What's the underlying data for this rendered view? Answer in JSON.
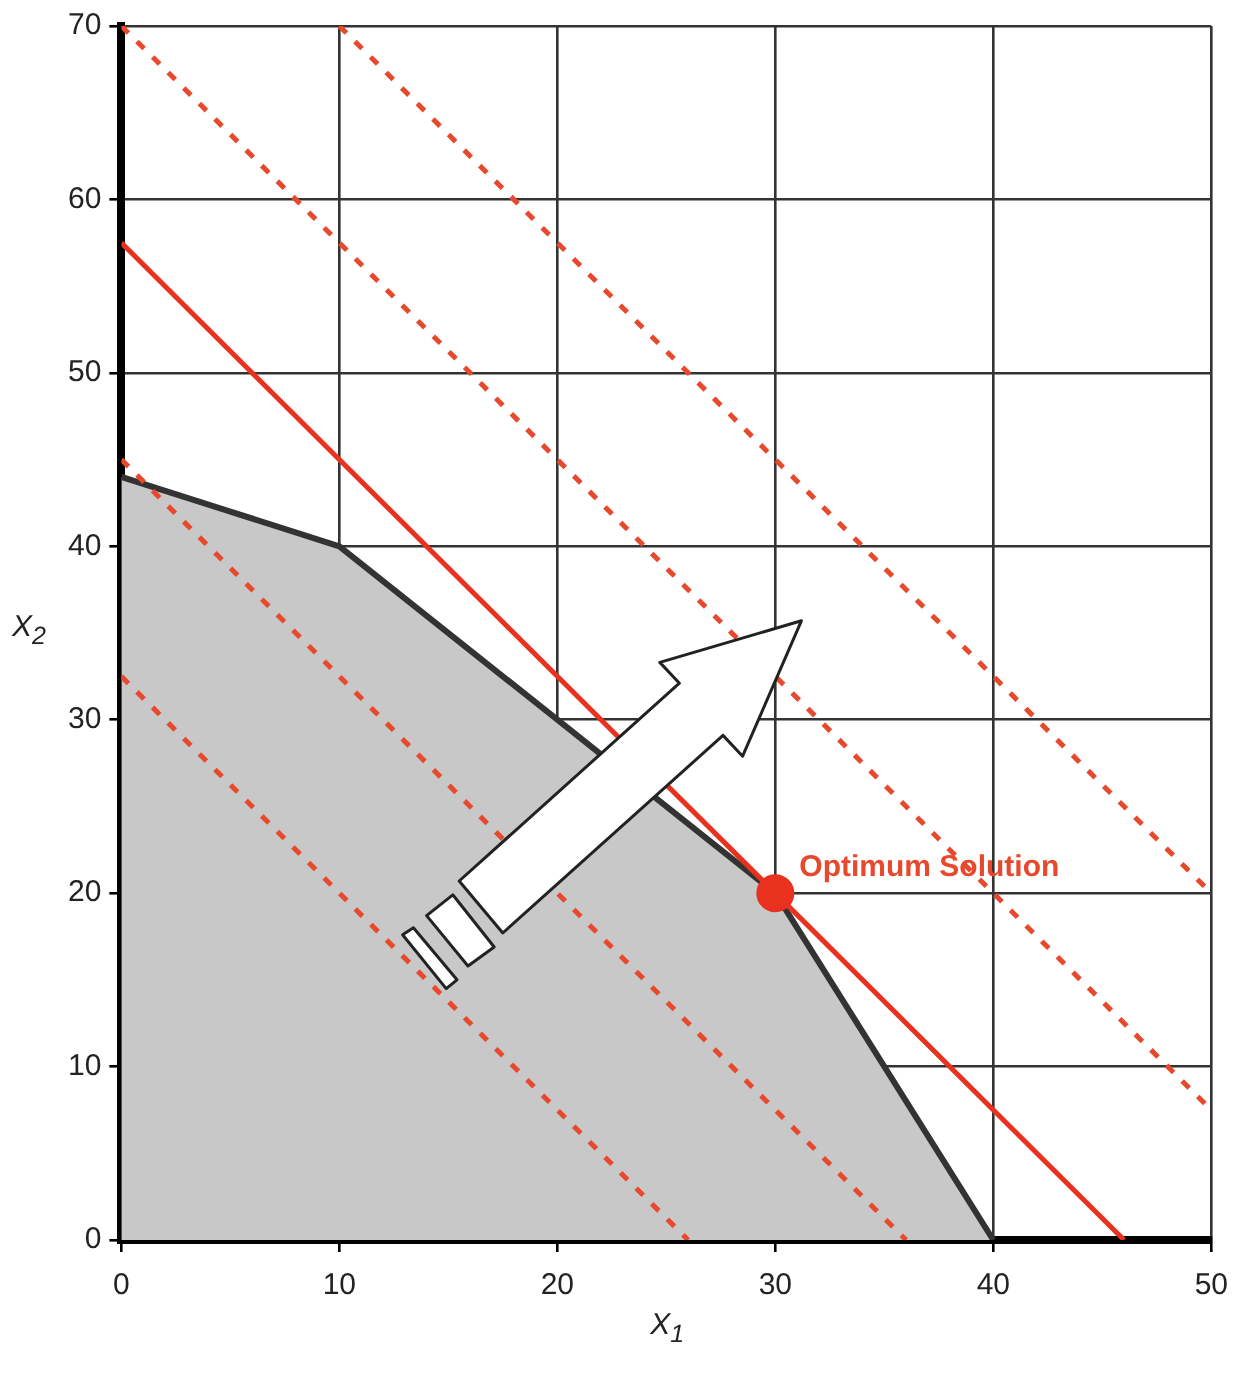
{
  "chart_data": {
    "type": "line",
    "xlabel": "X$_{1}$",
    "ylabel": "X$_{2}$",
    "xlim": [
      0,
      50
    ],
    "ylim": [
      0,
      70
    ],
    "xticks": [
      0,
      10,
      20,
      30,
      40,
      50
    ],
    "yticks": [
      0,
      10,
      20,
      30,
      40,
      50,
      60,
      70
    ],
    "grid": true,
    "legend": false,
    "series": [
      {
        "type": "area",
        "color": "#c8c8c8",
        "x": [
          0,
          10,
          20,
          30,
          40
        ],
        "values": [
          44,
          40,
          30,
          20,
          0
        ]
      },
      {
        "line_style": "dashed",
        "color": "#e8492c",
        "x": [
          0,
          26
        ],
        "values": [
          32.5,
          0
        ]
      },
      {
        "line_style": "dashed",
        "color": "#e8492c",
        "x": [
          0,
          36
        ],
        "values": [
          45,
          0
        ]
      },
      {
        "line_style": "solid",
        "color": "#e8311e",
        "x": [
          0,
          46
        ],
        "values": [
          57.5,
          0
        ]
      },
      {
        "line_style": "dashed",
        "color": "#e8492c",
        "x": [
          0,
          50
        ],
        "values": [
          70,
          7.5
        ]
      },
      {
        "line_style": "dashed",
        "color": "#e8492c",
        "x": [
          10,
          50
        ],
        "values": [
          70,
          20
        ]
      },
      {
        "type": "scatter",
        "marker": "circle",
        "color": "#e8311e",
        "x": [
          30
        ],
        "values": [
          20
        ]
      }
    ],
    "annotations": [
      {
        "text": "Optimum Solution",
        "x": 30,
        "y": 20
      }
    ]
  }
}
